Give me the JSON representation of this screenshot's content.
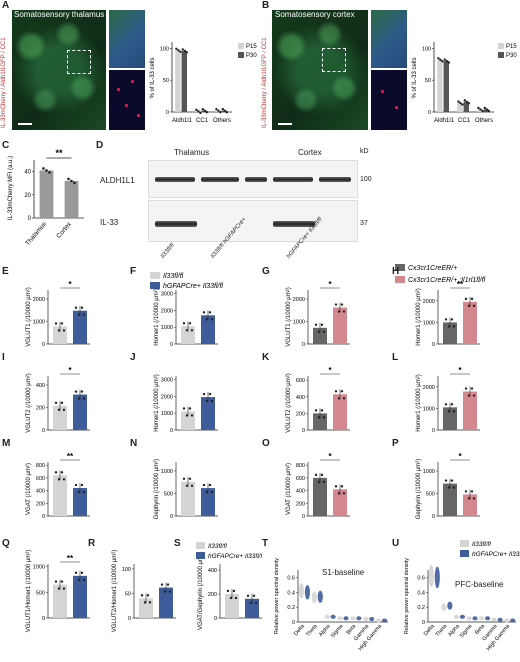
{
  "panels": {
    "A": "A",
    "B": "B",
    "C": "C",
    "D": "D",
    "E": "E",
    "F": "F",
    "G": "G",
    "H": "H",
    "I": "I",
    "J": "J",
    "K": "K",
    "L": "L",
    "M": "M",
    "N": "N",
    "O": "O",
    "P": "P",
    "Q": "Q",
    "R": "R",
    "S": "S",
    "T": "T",
    "U": "U"
  },
  "row1": {
    "a_title": "Somatosensory thalamus",
    "b_title": "Somatosensory cortex",
    "vertical_label": "IL-33mCherry / Aldh1l1GFP / CC1",
    "legend_p15": "P15",
    "legend_p30": "P30",
    "ylabel": "% of IL-33 cells",
    "categories": [
      "Aldh1l1",
      "CC1",
      "Others"
    ],
    "yticks": [
      "100",
      "50",
      "0"
    ]
  },
  "panel_c": {
    "ylabel": "IL-33mCherry MFI (a.u.)",
    "sig": "**",
    "cats": [
      "Thalamus",
      "Cortex"
    ],
    "yticks": [
      "40",
      "20",
      "0"
    ]
  },
  "panel_d": {
    "thalamus": "Thalamus",
    "cortex": "Cortex",
    "kd": "kD",
    "aldh": "ALDH1L1",
    "il33": "IL-33",
    "mw_100": "100",
    "mw_37": "37",
    "lane_labels": [
      "Il33fl/fl",
      "Il33fl/fl hGFAPCre+",
      "hGFAPCre+ Il33fl/fl"
    ]
  },
  "legend_left": {
    "ctrl": "Il33fl/fl",
    "cko": "hGFAPCre+ Il33fl/fl"
  },
  "legend_right": {
    "ctrl": "Cx3cr1CreER/+",
    "cko": "Cx3cr1CreER/+ ;Il1rl1fl/fl"
  },
  "colors": {
    "ctrl_grey": "#d4d4d4",
    "cko_blue": "#3f5c9a",
    "cre_grey": "#666666",
    "cre_pink": "#d4878f",
    "dot": "#222222"
  },
  "small_charts": [
    {
      "id": "E",
      "ylabel": "VGLUT1 (/10000 µm²)",
      "yticks": [
        "2000",
        "1000",
        "0"
      ],
      "sig": "*"
    },
    {
      "id": "F",
      "ylabel": "Homer1 (/10000 µm²)",
      "yticks": [
        "3000",
        "2000",
        "1000",
        "0"
      ],
      "sig": ""
    },
    {
      "id": "G",
      "ylabel": "VGLUT1 (/10000 µm²)",
      "yticks": [
        "2000",
        "1000",
        "0"
      ],
      "sig": "*"
    },
    {
      "id": "H",
      "ylabel": "Homer1 (/10000 µm²)",
      "yticks": [
        "2000",
        "1000",
        "0"
      ],
      "sig": "**"
    },
    {
      "id": "I",
      "ylabel": "VGLUT2 (/10000 µm²)",
      "yticks": [
        "400",
        "200",
        "0"
      ],
      "sig": "*"
    },
    {
      "id": "J",
      "ylabel": "Homer1 (/10000 µm²)",
      "yticks": [
        "3000",
        "2000",
        "1000",
        "0"
      ],
      "sig": ""
    },
    {
      "id": "K",
      "ylabel": "VGLUT2 (/10000 µm²)",
      "yticks": [
        "600",
        "400",
        "200",
        "0"
      ],
      "sig": "*"
    },
    {
      "id": "L",
      "ylabel": "Homer1 (/10000 µm²)",
      "yticks": [
        "2000",
        "1000",
        "0"
      ],
      "sig": "*"
    },
    {
      "id": "M",
      "ylabel": "VGAT (/10000 µm²)",
      "yticks": [
        "800",
        "600",
        "400",
        "200",
        "0"
      ],
      "sig": "**"
    },
    {
      "id": "N",
      "ylabel": "Gephyrin (/10000 µm²)",
      "yticks": [
        "1000",
        "500",
        "0"
      ],
      "sig": ""
    },
    {
      "id": "O",
      "ylabel": "VGAT (/10000 µm²)",
      "yticks": [
        "800",
        "600",
        "400",
        "200",
        "0"
      ],
      "sig": "*"
    },
    {
      "id": "P",
      "ylabel": "Gephyrin (/10000 µm²)",
      "yticks": [
        "1000",
        "500",
        "0"
      ],
      "sig": "*"
    },
    {
      "id": "Q",
      "ylabel": "VGLUT1/Homer1 (/10000 µm²)",
      "yticks": [
        "1000",
        "500",
        "0"
      ],
      "sig": "**"
    },
    {
      "id": "R",
      "ylabel": "VGLUT2/Homer1 (/10000 µm²)",
      "yticks": [
        "100",
        "50",
        "0"
      ],
      "sig": ""
    },
    {
      "id": "S",
      "ylabel": "VGAT/Gephyrin (/10000 µm²)",
      "yticks": [
        "400",
        "200",
        "0"
      ],
      "sig": ""
    }
  ],
  "panel_t": {
    "title": "S1-baseline",
    "ylabel": "Relative power spectral density",
    "bands": [
      "Delta",
      "Theta",
      "Alpha",
      "Sigma",
      "Beta",
      "Gamma",
      "High Gamma"
    ],
    "yticks": [
      "0.6",
      "0.4",
      "0.2",
      "0"
    ]
  },
  "panel_u": {
    "title": "PFC-baseline",
    "ylabel": "Relative power spectral density",
    "bands": [
      "Delta",
      "Theta",
      "Alpha",
      "Sigma",
      "Beta",
      "Gamma",
      "High Gamma"
    ],
    "yticks": [
      "0.6",
      "0.4",
      "0.2",
      "0"
    ]
  },
  "chart_data": [
    {
      "type": "bar",
      "panel": "A",
      "categories": [
        "Aldh1l1",
        "CC1",
        "Others"
      ],
      "series": [
        {
          "name": "P15",
          "values": [
            97,
            1,
            2
          ]
        },
        {
          "name": "P30",
          "values": [
            96,
            2,
            2
          ]
        }
      ],
      "ylabel": "% of IL-33 cells",
      "ylim": [
        0,
        110
      ]
    },
    {
      "type": "bar",
      "panel": "B",
      "categories": [
        "Aldh1l1",
        "CC1",
        "Others"
      ],
      "series": [
        {
          "name": "P15",
          "values": [
            82,
            14,
            4
          ]
        },
        {
          "name": "P30",
          "values": [
            80,
            16,
            4
          ]
        }
      ],
      "ylabel": "% of IL-33 cells",
      "ylim": [
        0,
        110
      ]
    },
    {
      "type": "bar",
      "panel": "C",
      "categories": [
        "Thalamus",
        "Cortex"
      ],
      "values": [
        41,
        32
      ],
      "ylabel": "IL-33mCherry MFI (a.u.)",
      "ylim": [
        0,
        50
      ]
    },
    {
      "type": "bar",
      "panel": "E",
      "categories": [
        "Il33fl/fl",
        "hGFAPCre+ Il33fl/fl"
      ],
      "values": [
        780,
        1480
      ],
      "ylim": [
        0,
        2400
      ]
    },
    {
      "type": "bar",
      "panel": "F",
      "categories": [
        "Il33fl/fl",
        "hGFAPCre+ Il33fl/fl"
      ],
      "values": [
        1050,
        1700
      ],
      "ylim": [
        0,
        3200
      ]
    },
    {
      "type": "bar",
      "panel": "G",
      "categories": [
        "Cx3cr1CreER/+",
        "Cx3cr1CreER/+ ;Il1rl1fl/fl"
      ],
      "values": [
        720,
        1620
      ],
      "ylim": [
        0,
        2400
      ]
    },
    {
      "type": "bar",
      "panel": "H",
      "categories": [
        "Cx3cr1CreER/+",
        "Cx3cr1CreER/+ ;Il1rl1fl/fl"
      ],
      "values": [
        1000,
        1950
      ],
      "ylim": [
        0,
        2500
      ]
    },
    {
      "type": "bar",
      "panel": "I",
      "categories": [
        "Il33fl/fl",
        "hGFAPCre+ Il33fl/fl"
      ],
      "values": [
        215,
        315
      ],
      "ylim": [
        0,
        480
      ]
    },
    {
      "type": "bar",
      "panel": "J",
      "categories": [
        "Il33fl/fl",
        "hGFAPCre+ Il33fl/fl"
      ],
      "values": [
        1100,
        1950
      ],
      "ylim": [
        0,
        3200
      ]
    },
    {
      "type": "bar",
      "panel": "K",
      "categories": [
        "Cx3cr1CreER/+",
        "Cx3cr1CreER/+ ;Il1rl1fl/fl"
      ],
      "values": [
        200,
        430
      ],
      "ylim": [
        0,
        650
      ]
    },
    {
      "type": "bar",
      "panel": "L",
      "categories": [
        "Cx3cr1CreER/+",
        "Cx3cr1CreER/+ ;Il1rl1fl/fl"
      ],
      "values": [
        1050,
        1780
      ],
      "ylim": [
        0,
        2500
      ]
    },
    {
      "type": "bar",
      "panel": "M",
      "categories": [
        "Il33fl/fl",
        "hGFAPCre+ Il33fl/fl"
      ],
      "values": [
        640,
        440
      ],
      "ylim": [
        0,
        850
      ]
    },
    {
      "type": "bar",
      "panel": "N",
      "categories": [
        "Il33fl/fl",
        "hGFAPCre+ Il33fl/fl"
      ],
      "values": [
        760,
        620
      ],
      "ylim": [
        0,
        1200
      ]
    },
    {
      "type": "bar",
      "panel": "O",
      "categories": [
        "Cx3cr1CreER/+",
        "Cx3cr1CreER/+ ;Il1rl1fl/fl"
      ],
      "values": [
        600,
        420
      ],
      "ylim": [
        0,
        850
      ]
    },
    {
      "type": "bar",
      "panel": "P",
      "categories": [
        "Cx3cr1CreER/+",
        "Cx3cr1CreER/+ ;Il1rl1fl/fl"
      ],
      "values": [
        720,
        480
      ],
      "ylim": [
        0,
        1200
      ]
    },
    {
      "type": "bar",
      "panel": "Q",
      "categories": [
        "Il33fl/fl",
        "hGFAPCre+ Il33fl/fl"
      ],
      "values": [
        650,
        820
      ],
      "ylim": [
        0,
        1050
      ]
    },
    {
      "type": "bar",
      "panel": "R",
      "categories": [
        "Il33fl/fl",
        "hGFAPCre+ Il33fl/fl"
      ],
      "values": [
        40,
        62
      ],
      "ylim": [
        0,
        110
      ]
    },
    {
      "type": "bar",
      "panel": "S",
      "categories": [
        "Il33fl/fl",
        "hGFAPCre+ Il33fl/fl"
      ],
      "values": [
        200,
        160
      ],
      "ylim": [
        0,
        450
      ]
    },
    {
      "type": "scatter",
      "panel": "T",
      "categories": [
        "Delta",
        "Theta",
        "Alpha",
        "Sigma",
        "Beta",
        "Gamma",
        "High Gamma"
      ],
      "series": [
        {
          "name": "Il33fl/fl",
          "values": [
            0.42,
            0.33,
            0.07,
            0.05,
            0.05,
            0.04,
            0.02
          ]
        },
        {
          "name": "hGFAPCre+ Il33fl/fl",
          "values": [
            0.4,
            0.34,
            0.07,
            0.05,
            0.05,
            0.04,
            0.02
          ]
        }
      ],
      "ylim": [
        0,
        0.7
      ]
    },
    {
      "type": "scatter",
      "panel": "U",
      "categories": [
        "Delta",
        "Theta",
        "Alpha",
        "Sigma",
        "Beta",
        "Gamma",
        "High Gamma"
      ],
      "series": [
        {
          "name": "Il33fl/fl",
          "values": [
            0.62,
            0.2,
            0.07,
            0.05,
            0.05,
            0.03,
            0.02
          ]
        },
        {
          "name": "hGFAPCre+ Il33fl/fl",
          "values": [
            0.6,
            0.22,
            0.07,
            0.05,
            0.05,
            0.03,
            0.02
          ]
        }
      ],
      "ylim": [
        0,
        0.7
      ]
    }
  ]
}
